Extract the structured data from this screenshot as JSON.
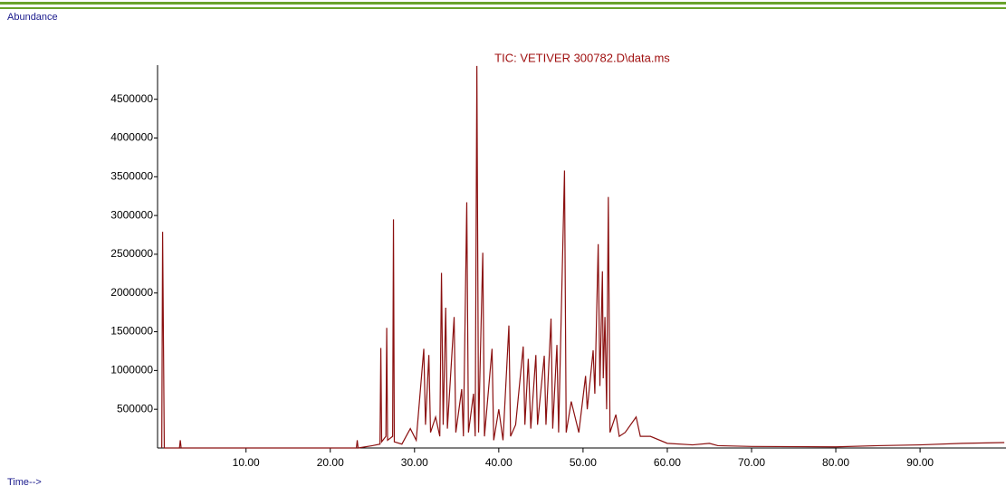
{
  "chart_data": {
    "type": "line",
    "title": "TIC: VETIVER 300782.D\\data.ms",
    "y_label": "Abundance",
    "x_label": "Time-->",
    "color": "#8b1010",
    "x": [
      0.0,
      0.1,
      0.3,
      2.1,
      2.2,
      2.3,
      10,
      20,
      23.1,
      23.2,
      23.3,
      25,
      25.9,
      26.0,
      26.1,
      26.6,
      26.7,
      26.8,
      27.4,
      27.5,
      27.6,
      28.5,
      29.5,
      30.2,
      31.1,
      31.3,
      31.7,
      31.9,
      32.5,
      33.0,
      33.2,
      33.4,
      33.7,
      33.9,
      34.7,
      34.9,
      35.6,
      35.8,
      36.2,
      36.4,
      37.0,
      37.2,
      37.4,
      37.6,
      38.1,
      38.3,
      39.2,
      39.4,
      40.0,
      40.5,
      41.2,
      41.4,
      42.0,
      42.9,
      43.1,
      43.5,
      43.8,
      44.4,
      44.6,
      45.4,
      45.6,
      46.2,
      46.4,
      46.9,
      47.1,
      47.8,
      48.0,
      48.6,
      49.5,
      50.3,
      50.5,
      51.2,
      51.4,
      51.8,
      52.0,
      52.3,
      52.4,
      52.6,
      52.8,
      53.0,
      53.2,
      53.9,
      54.3,
      55.0,
      56.3,
      56.8,
      58.0,
      60,
      63,
      65,
      66,
      70,
      80,
      85,
      90,
      95,
      100
    ],
    "values": [
      0,
      2790000,
      0,
      0,
      100000,
      0,
      0,
      0,
      0,
      100000,
      0,
      30000,
      50000,
      1290000,
      80000,
      150000,
      1550000,
      100000,
      150000,
      2950000,
      80000,
      50000,
      250000,
      100000,
      1280000,
      300000,
      1200000,
      200000,
      400000,
      150000,
      2260000,
      300000,
      1810000,
      250000,
      1690000,
      200000,
      760000,
      150000,
      3170000,
      200000,
      700000,
      150000,
      4930000,
      200000,
      2520000,
      150000,
      1280000,
      100000,
      500000,
      100000,
      1580000,
      150000,
      300000,
      1310000,
      300000,
      1150000,
      250000,
      1200000,
      300000,
      1190000,
      300000,
      1670000,
      250000,
      1330000,
      200000,
      3580000,
      200000,
      600000,
      200000,
      930000,
      500000,
      1260000,
      700000,
      2630000,
      800000,
      2280000,
      900000,
      1690000,
      500000,
      3240000,
      200000,
      430000,
      150000,
      200000,
      400000,
      150000,
      150000,
      60000,
      40000,
      60000,
      30000,
      20000,
      15000,
      30000,
      40000,
      60000,
      70000
    ],
    "xlim": [
      -0.5,
      100.2
    ],
    "ylim": [
      0,
      4940000
    ],
    "xticks": [
      {
        "value": 10,
        "label": "10.00"
      },
      {
        "value": 20,
        "label": "20.00"
      },
      {
        "value": 30,
        "label": "30.00"
      },
      {
        "value": 40,
        "label": "40.00"
      },
      {
        "value": 50,
        "label": "50.00"
      },
      {
        "value": 60,
        "label": "60.00"
      },
      {
        "value": 70,
        "label": "70.00"
      },
      {
        "value": 80,
        "label": "80.00"
      },
      {
        "value": 90,
        "label": "90.00"
      }
    ],
    "yticks": [
      500000,
      1000000,
      1500000,
      2000000,
      2500000,
      3000000,
      3500000,
      4000000,
      4500000
    ]
  }
}
